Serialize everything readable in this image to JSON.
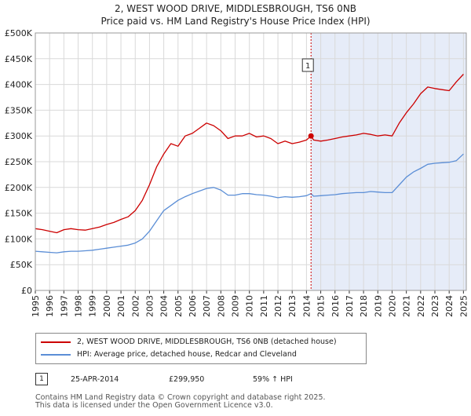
{
  "title_line1": "2, WEST WOOD DRIVE, MIDDLESBROUGH, TS6 0NB",
  "title_line2": "Price paid vs. HM Land Registry's House Price Index (HPI)",
  "legend": {
    "property_label": "2, WEST WOOD DRIVE, MIDDLESBROUGH, TS6 0NB (detached house)",
    "hpi_label": "HPI: Average price, detached house, Redcar and Cleveland"
  },
  "annotation": {
    "number": "1",
    "date": "25-APR-2014",
    "price": "£299,950",
    "hpi_change": "59% ↑ HPI"
  },
  "footer_line1": "Contains HM Land Registry data © Crown copyright and database right 2025.",
  "footer_line2": "This data is licensed under the Open Government Licence v3.0.",
  "colors": {
    "property": "#cc0000",
    "hpi": "#5b8ed6",
    "shade": "#e6ecf8",
    "grid": "#d9d9d9"
  },
  "chart_data": {
    "type": "line",
    "xlim": [
      1995,
      2025.2
    ],
    "ylim": [
      0,
      500000
    ],
    "x_ticks": [
      "1995",
      "1996",
      "1997",
      "1998",
      "1999",
      "2000",
      "2001",
      "2002",
      "2003",
      "2004",
      "2005",
      "2006",
      "2007",
      "2008",
      "2009",
      "2010",
      "2011",
      "2012",
      "2013",
      "2014",
      "2015",
      "2016",
      "2017",
      "2018",
      "2019",
      "2020",
      "2021",
      "2022",
      "2023",
      "2024",
      "2025"
    ],
    "y_ticks": [
      {
        "value": 0,
        "label": "£0"
      },
      {
        "value": 50000,
        "label": "£50K"
      },
      {
        "value": 100000,
        "label": "£100K"
      },
      {
        "value": 150000,
        "label": "£150K"
      },
      {
        "value": 200000,
        "label": "£200K"
      },
      {
        "value": 250000,
        "label": "£250K"
      },
      {
        "value": 300000,
        "label": "£300K"
      },
      {
        "value": 350000,
        "label": "£350K"
      },
      {
        "value": 400000,
        "label": "£400K"
      },
      {
        "value": 450000,
        "label": "£450K"
      },
      {
        "value": 500000,
        "label": "£500K"
      }
    ],
    "sale": {
      "x": 2014.32,
      "y": 299950,
      "label": "1"
    },
    "series": [
      {
        "name": "2, WEST WOOD DRIVE, MIDDLESBROUGH, TS6 0NB (detached house)",
        "x": [
          1995,
          1995.5,
          1996,
          1996.5,
          1997,
          1997.5,
          1998,
          1998.5,
          1999,
          1999.5,
          2000,
          2000.5,
          2001,
          2001.5,
          2002,
          2002.5,
          2003,
          2003.5,
          2004,
          2004.5,
          2005,
          2005.5,
          2006,
          2006.5,
          2007,
          2007.5,
          2008,
          2008.5,
          2009,
          2009.5,
          2010,
          2010.5,
          2011,
          2011.5,
          2012,
          2012.5,
          2013,
          2013.5,
          2014,
          2014.32,
          2014.5,
          2015,
          2015.5,
          2016,
          2016.5,
          2017,
          2017.5,
          2018,
          2018.5,
          2019,
          2019.5,
          2020,
          2020.5,
          2021,
          2021.5,
          2022,
          2022.5,
          2023,
          2023.5,
          2024,
          2024.5,
          2025
        ],
        "values": [
          120000,
          118000,
          115000,
          112000,
          118000,
          120000,
          118000,
          117000,
          120000,
          123000,
          128000,
          132000,
          138000,
          143000,
          155000,
          175000,
          205000,
          240000,
          265000,
          285000,
          280000,
          300000,
          305000,
          315000,
          325000,
          320000,
          310000,
          295000,
          300000,
          300000,
          305000,
          298000,
          300000,
          295000,
          285000,
          290000,
          285000,
          288000,
          292000,
          299950,
          292000,
          290000,
          292000,
          295000,
          298000,
          300000,
          302000,
          305000,
          303000,
          300000,
          302000,
          300000,
          325000,
          345000,
          362000,
          382000,
          395000,
          392000,
          390000,
          388000,
          405000,
          420000
        ]
      },
      {
        "name": "HPI: Average price, detached house, Redcar and Cleveland",
        "x": [
          1995,
          1995.5,
          1996,
          1996.5,
          1997,
          1997.5,
          1998,
          1998.5,
          1999,
          1999.5,
          2000,
          2000.5,
          2001,
          2001.5,
          2002,
          2002.5,
          2003,
          2003.5,
          2004,
          2004.5,
          2005,
          2005.5,
          2006,
          2006.5,
          2007,
          2007.5,
          2008,
          2008.5,
          2009,
          2009.5,
          2010,
          2010.5,
          2011,
          2011.5,
          2012,
          2012.5,
          2013,
          2013.5,
          2014,
          2014.32,
          2014.5,
          2015,
          2015.5,
          2016,
          2016.5,
          2017,
          2017.5,
          2018,
          2018.5,
          2019,
          2019.5,
          2020,
          2020.5,
          2021,
          2021.5,
          2022,
          2022.5,
          2023,
          2023.5,
          2024,
          2024.5,
          2025
        ],
        "values": [
          76000,
          75000,
          74000,
          73000,
          75000,
          76000,
          76000,
          77000,
          78000,
          80000,
          82000,
          84000,
          86000,
          88000,
          92000,
          100000,
          115000,
          135000,
          155000,
          165000,
          175000,
          182000,
          188000,
          193000,
          198000,
          200000,
          195000,
          185000,
          185000,
          188000,
          188000,
          186000,
          185000,
          183000,
          180000,
          182000,
          181000,
          182000,
          184000,
          188000,
          183000,
          184000,
          185000,
          186000,
          188000,
          189000,
          190000,
          190000,
          192000,
          191000,
          190000,
          190000,
          205000,
          220000,
          230000,
          237000,
          245000,
          247000,
          248000,
          249000,
          252000,
          265000
        ]
      }
    ]
  }
}
